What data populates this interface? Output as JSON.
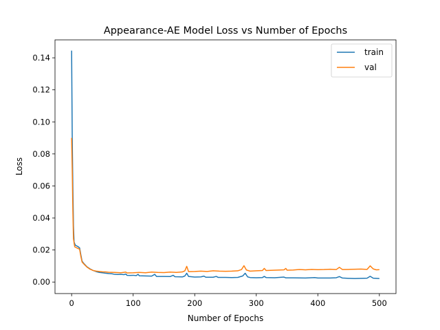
{
  "chart_data": {
    "type": "line",
    "title": "Appearance-AE Model Loss vs Number of Epochs",
    "xlabel": "Number of Epochs",
    "ylabel": "Loss",
    "xlim": [
      -27,
      527
    ],
    "ylim": [
      -0.0072,
      0.1512
    ],
    "xticks": [
      0,
      100,
      200,
      300,
      400,
      500
    ],
    "xtick_labels": [
      "0",
      "100",
      "200",
      "300",
      "400",
      "500"
    ],
    "yticks": [
      0.0,
      0.02,
      0.04,
      0.06,
      0.08,
      0.1,
      0.12,
      0.14
    ],
    "ytick_labels": [
      "0.00",
      "0.02",
      "0.04",
      "0.06",
      "0.08",
      "0.10",
      "0.12",
      "0.14"
    ],
    "grid": false,
    "legend_position": "top-right",
    "series": [
      {
        "name": "train",
        "color": "#1f77b4",
        "points": [
          [
            0,
            0.1445
          ],
          [
            1,
            0.09
          ],
          [
            2,
            0.06
          ],
          [
            3,
            0.035
          ],
          [
            4,
            0.025
          ],
          [
            6,
            0.023
          ],
          [
            10,
            0.0222
          ],
          [
            13,
            0.0213
          ],
          [
            15,
            0.017
          ],
          [
            17,
            0.013
          ],
          [
            20,
            0.0115
          ],
          [
            25,
            0.0095
          ],
          [
            30,
            0.0082
          ],
          [
            35,
            0.0072
          ],
          [
            40,
            0.0065
          ],
          [
            45,
            0.006
          ],
          [
            50,
            0.0058
          ],
          [
            55,
            0.0055
          ],
          [
            60,
            0.0053
          ],
          [
            65,
            0.0052
          ],
          [
            70,
            0.0048
          ],
          [
            75,
            0.0047
          ],
          [
            80,
            0.0048
          ],
          [
            85,
            0.0046
          ],
          [
            88,
            0.005
          ],
          [
            90,
            0.0042
          ],
          [
            95,
            0.0041
          ],
          [
            100,
            0.0042
          ],
          [
            105,
            0.004
          ],
          [
            108,
            0.0048
          ],
          [
            110,
            0.0039
          ],
          [
            120,
            0.0038
          ],
          [
            130,
            0.0037
          ],
          [
            135,
            0.0048
          ],
          [
            138,
            0.0035
          ],
          [
            150,
            0.0035
          ],
          [
            160,
            0.0034
          ],
          [
            165,
            0.0042
          ],
          [
            168,
            0.0033
          ],
          [
            180,
            0.0032
          ],
          [
            184,
            0.0038
          ],
          [
            187,
            0.0055
          ],
          [
            190,
            0.0035
          ],
          [
            200,
            0.0031
          ],
          [
            210,
            0.0032
          ],
          [
            215,
            0.0037
          ],
          [
            218,
            0.003
          ],
          [
            230,
            0.003
          ],
          [
            235,
            0.0035
          ],
          [
            238,
            0.0029
          ],
          [
            250,
            0.0029
          ],
          [
            260,
            0.0028
          ],
          [
            270,
            0.0029
          ],
          [
            278,
            0.0038
          ],
          [
            282,
            0.0055
          ],
          [
            286,
            0.0032
          ],
          [
            290,
            0.0028
          ],
          [
            300,
            0.0027
          ],
          [
            310,
            0.0028
          ],
          [
            313,
            0.0035
          ],
          [
            316,
            0.0028
          ],
          [
            330,
            0.0027
          ],
          [
            345,
            0.0031
          ],
          [
            348,
            0.0026
          ],
          [
            360,
            0.0026
          ],
          [
            380,
            0.0025
          ],
          [
            395,
            0.0028
          ],
          [
            400,
            0.0025
          ],
          [
            420,
            0.0025
          ],
          [
            430,
            0.0027
          ],
          [
            435,
            0.0034
          ],
          [
            440,
            0.0025
          ],
          [
            450,
            0.0023
          ],
          [
            460,
            0.0022
          ],
          [
            470,
            0.0023
          ],
          [
            480,
            0.0024
          ],
          [
            485,
            0.0036
          ],
          [
            490,
            0.0024
          ],
          [
            500,
            0.0022
          ]
        ]
      },
      {
        "name": "val",
        "color": "#ff7f0e",
        "points": [
          [
            0,
            0.09
          ],
          [
            1,
            0.07
          ],
          [
            2,
            0.045
          ],
          [
            3,
            0.027
          ],
          [
            5,
            0.022
          ],
          [
            10,
            0.021
          ],
          [
            13,
            0.0205
          ],
          [
            15,
            0.016
          ],
          [
            17,
            0.0125
          ],
          [
            20,
            0.0112
          ],
          [
            25,
            0.0093
          ],
          [
            30,
            0.008
          ],
          [
            35,
            0.0072
          ],
          [
            40,
            0.0068
          ],
          [
            45,
            0.0066
          ],
          [
            50,
            0.0064
          ],
          [
            55,
            0.0063
          ],
          [
            60,
            0.0061
          ],
          [
            70,
            0.006
          ],
          [
            80,
            0.0058
          ],
          [
            88,
            0.0062
          ],
          [
            90,
            0.0057
          ],
          [
            100,
            0.0058
          ],
          [
            110,
            0.006
          ],
          [
            120,
            0.0058
          ],
          [
            130,
            0.0062
          ],
          [
            140,
            0.006
          ],
          [
            150,
            0.0059
          ],
          [
            160,
            0.0062
          ],
          [
            170,
            0.006
          ],
          [
            180,
            0.0063
          ],
          [
            184,
            0.007
          ],
          [
            187,
            0.0098
          ],
          [
            190,
            0.0065
          ],
          [
            200,
            0.0066
          ],
          [
            210,
            0.0068
          ],
          [
            220,
            0.0066
          ],
          [
            230,
            0.007
          ],
          [
            240,
            0.0068
          ],
          [
            250,
            0.0067
          ],
          [
            260,
            0.0068
          ],
          [
            270,
            0.007
          ],
          [
            276,
            0.0078
          ],
          [
            280,
            0.0102
          ],
          [
            284,
            0.0075
          ],
          [
            290,
            0.0068
          ],
          [
            300,
            0.007
          ],
          [
            310,
            0.0072
          ],
          [
            313,
            0.0085
          ],
          [
            316,
            0.0072
          ],
          [
            330,
            0.0074
          ],
          [
            345,
            0.0076
          ],
          [
            348,
            0.0085
          ],
          [
            350,
            0.0074
          ],
          [
            360,
            0.0075
          ],
          [
            370,
            0.0078
          ],
          [
            380,
            0.0076
          ],
          [
            390,
            0.0079
          ],
          [
            400,
            0.0077
          ],
          [
            410,
            0.0078
          ],
          [
            420,
            0.008
          ],
          [
            430,
            0.0078
          ],
          [
            435,
            0.0092
          ],
          [
            440,
            0.0078
          ],
          [
            450,
            0.0079
          ],
          [
            460,
            0.008
          ],
          [
            470,
            0.0081
          ],
          [
            480,
            0.0079
          ],
          [
            485,
            0.0101
          ],
          [
            490,
            0.0082
          ],
          [
            495,
            0.0076
          ],
          [
            500,
            0.0077
          ]
        ]
      }
    ]
  }
}
